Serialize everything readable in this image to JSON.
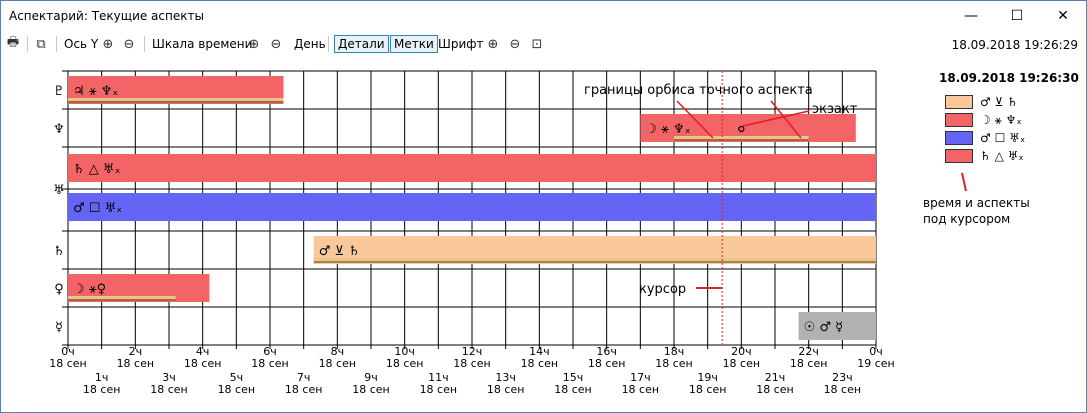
{
  "window": {
    "title": "Аспектарий: Текущие аспекты",
    "minimize": "—",
    "maximize": "☐",
    "close": "✕"
  },
  "toolbar": {
    "axis_y": "Ось Y",
    "timescale": "Шкала времени",
    "day": "День",
    "details": "Детали",
    "labels": "Метки",
    "font": "Шрифт",
    "datetime": "18.09.2018 19:26:29"
  },
  "legend": {
    "title": "18.09.2018 19:26:30",
    "items": [
      {
        "label": "♂ ⊻ ♄",
        "color": "#f9c89a"
      },
      {
        "label": "☽ ⚹ ♆ₓ",
        "color": "#f26466"
      },
      {
        "label": "♂ ☐ ♅ₓ",
        "color": "#6464f5"
      },
      {
        "label": "♄ △ ♅ₓ",
        "color": "#f26466"
      }
    ],
    "note_line1": "время и аспекты",
    "note_line2": "под курсором"
  },
  "annotations": {
    "orb": "границы орбиса точного аспекта",
    "exact": "экзакт",
    "cursor": "курсор"
  },
  "chart_data": {
    "type": "gantt",
    "rows": [
      "♇",
      "♆",
      "♅",
      "♄",
      "♀",
      "☿"
    ],
    "x_range_hours": [
      0,
      24
    ],
    "tick_labels_top": [
      "0ч",
      "2ч",
      "4ч",
      "6ч",
      "8ч",
      "10ч",
      "12ч",
      "14ч",
      "16ч",
      "18ч",
      "20ч",
      "22ч",
      "0ч"
    ],
    "tick_sublabels_top": [
      "18 сен",
      "18 сен",
      "18 сен",
      "18 сен",
      "18 сен",
      "18 сен",
      "18 сен",
      "18 сен",
      "18 сен",
      "18 сен",
      "18 сен",
      "18 сен",
      "19 сен"
    ],
    "tick_labels_bottom": [
      "1ч",
      "3ч",
      "5ч",
      "7ч",
      "9ч",
      "11ч",
      "13ч",
      "15ч",
      "17ч",
      "19ч",
      "21ч",
      "23ч"
    ],
    "tick_sublabels_bottom": [
      "18 сен",
      "18 сен",
      "18 сен",
      "18 сен",
      "18 сен",
      "18 сен",
      "18 сен",
      "18 сен",
      "18 сен",
      "18 сен",
      "18 сен",
      "18 сен"
    ],
    "cursor_hour": 19.43,
    "bars": [
      {
        "row": 0,
        "label": "♃ ⚹ ♆ₓ",
        "start": 0,
        "end": 6.4,
        "color": "#f26466",
        "orb_start": 0,
        "orb_end": 6.4
      },
      {
        "row": 1,
        "label": "☽ ⚹ ♆ₓ",
        "start": 17.0,
        "end": 23.4,
        "color": "#f26466",
        "orb_start": 18.0,
        "orb_end": 22.0,
        "exact": 20.0
      },
      {
        "row": 2,
        "label": "♄ △ ♅ₓ",
        "start": 0,
        "end": 24,
        "color": "#f26466",
        "sub": "top"
      },
      {
        "row": 2,
        "label": "♂ ☐ ♅ₓ",
        "start": 0,
        "end": 24,
        "color": "#6464f5",
        "sub": "bottom"
      },
      {
        "row": 3,
        "label": "♂ ⊻ ♄",
        "start": 7.3,
        "end": 24,
        "color": "#f9c89a",
        "orb_start": 7.3,
        "orb_end": 24
      },
      {
        "row": 4,
        "label": "☽ ⚹♀",
        "start": 0,
        "end": 4.2,
        "color": "#f26466",
        "orb_start": 0,
        "orb_end": 3.2
      },
      {
        "row": 5,
        "label": "☉ ♂ ☿",
        "start": 21.7,
        "end": 24,
        "color": "#b2b2b2"
      }
    ]
  }
}
